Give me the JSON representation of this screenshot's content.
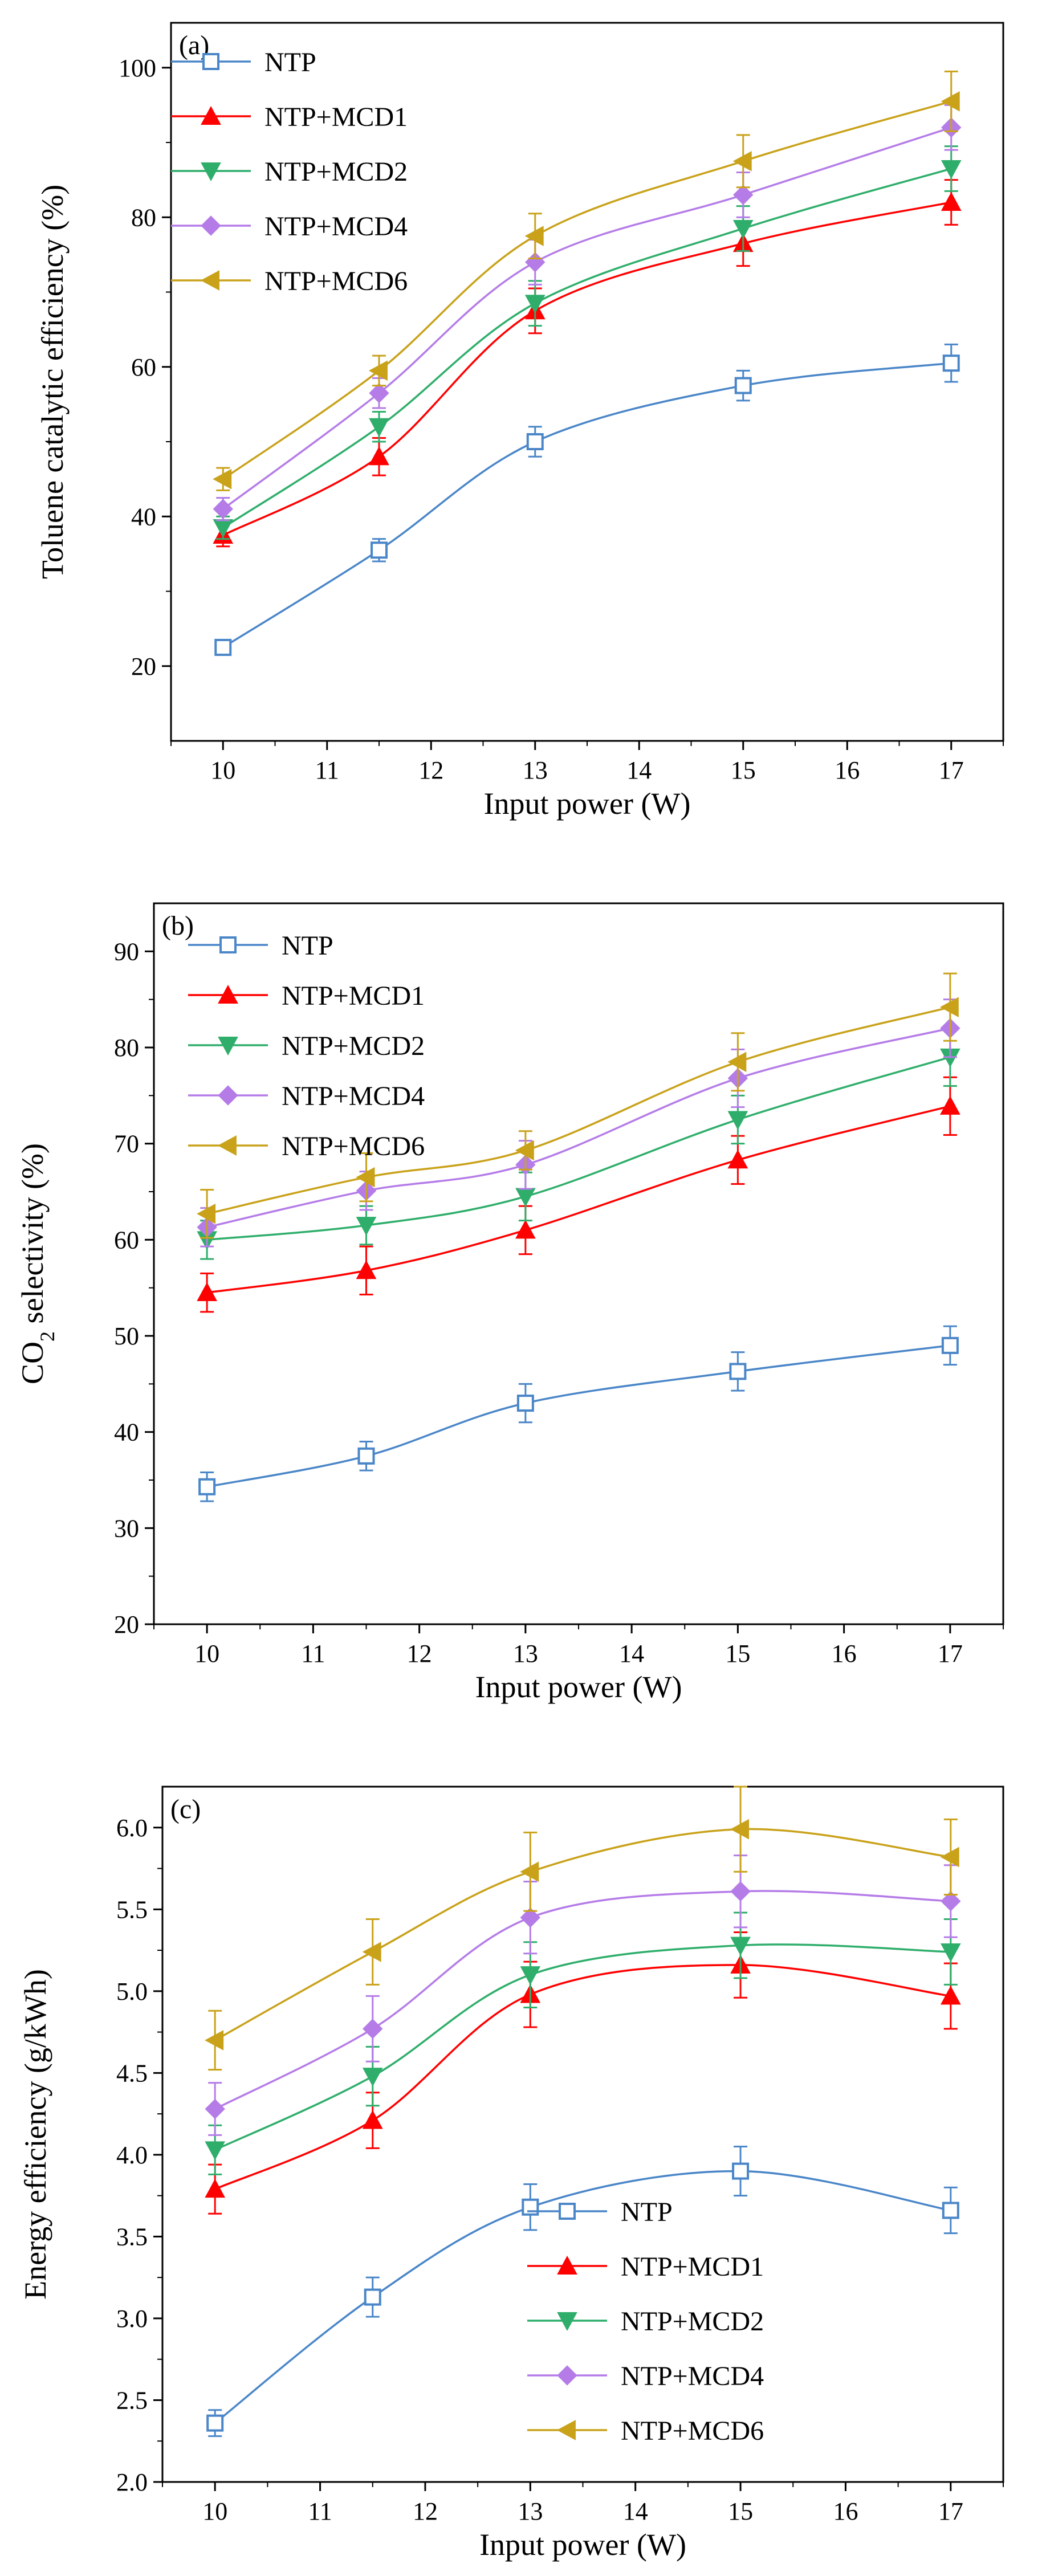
{
  "chart_data": [
    {
      "type": "line",
      "panel_label": "(a)",
      "xlabel": "Input power (W)",
      "ylabel": "Toluene catalytic efficiency (%)",
      "x": [
        10,
        11.5,
        13,
        15,
        17
      ],
      "xlim": [
        9.5,
        17.5
      ],
      "ylim": [
        10,
        106
      ],
      "xticks": [
        10,
        11,
        12,
        13,
        14,
        15,
        16,
        17
      ],
      "yticks": [
        20,
        40,
        60,
        80,
        100
      ],
      "legend_position": "top-left",
      "series": [
        {
          "name": "NTP",
          "values": [
            22.5,
            35.5,
            50,
            57.5,
            60.5
          ],
          "errors": [
            1.0,
            1.5,
            2.0,
            2.0,
            2.5
          ],
          "color": "#4a86c8",
          "marker": "square-open"
        },
        {
          "name": "NTP+MCD1",
          "values": [
            37.5,
            48,
            67.5,
            76.5,
            82
          ],
          "errors": [
            1.5,
            2.5,
            3.0,
            3.0,
            3.0
          ],
          "color": "#ff0000",
          "marker": "triangle-up"
        },
        {
          "name": "NTP+MCD2",
          "values": [
            38.5,
            52,
            68.5,
            78.5,
            86.5
          ],
          "errors": [
            1.5,
            2.0,
            3.0,
            3.0,
            3.0
          ],
          "color": "#2fae6b",
          "marker": "triangle-down"
        },
        {
          "name": "NTP+MCD4",
          "values": [
            41,
            56.5,
            74,
            83,
            92
          ],
          "errors": [
            1.5,
            2.0,
            3.0,
            3.0,
            3.0
          ],
          "color": "#b57ce8",
          "marker": "diamond"
        },
        {
          "name": "NTP+MCD6",
          "values": [
            45,
            59.5,
            77.5,
            87.5,
            95.5
          ],
          "errors": [
            1.5,
            2.0,
            3.0,
            3.5,
            4.0
          ],
          "color": "#c9a21a",
          "marker": "triangle-left"
        }
      ]
    },
    {
      "type": "line",
      "panel_label": "(b)",
      "xlabel": "Input power (W)",
      "ylabel": "CO2 selectivity (%)",
      "x": [
        10,
        11.5,
        13,
        15,
        17
      ],
      "xlim": [
        9.5,
        17.5
      ],
      "ylim": [
        20,
        95
      ],
      "xticks": [
        10,
        11,
        12,
        13,
        14,
        15,
        16,
        17
      ],
      "yticks": [
        20,
        30,
        40,
        50,
        60,
        70,
        80,
        90
      ],
      "legend_position": "top-left",
      "series": [
        {
          "name": "NTP",
          "values": [
            34.3,
            37.5,
            43,
            46.3,
            49
          ],
          "errors": [
            1.5,
            1.5,
            2.0,
            2.0,
            2.0
          ],
          "color": "#4a86c8",
          "marker": "square-open"
        },
        {
          "name": "NTP+MCD1",
          "values": [
            54.5,
            56.8,
            61,
            68.3,
            73.9
          ],
          "errors": [
            2.0,
            2.5,
            2.5,
            2.5,
            3.0
          ],
          "color": "#ff0000",
          "marker": "triangle-up"
        },
        {
          "name": "NTP+MCD2",
          "values": [
            60,
            61.5,
            64.5,
            72.5,
            79
          ],
          "errors": [
            2.0,
            2.0,
            2.5,
            2.5,
            3.0
          ],
          "color": "#2fae6b",
          "marker": "triangle-down"
        },
        {
          "name": "NTP+MCD4",
          "values": [
            61.3,
            65.1,
            67.8,
            76.8,
            82
          ],
          "errors": [
            2.0,
            2.0,
            2.5,
            3.0,
            3.0
          ],
          "color": "#b57ce8",
          "marker": "diamond"
        },
        {
          "name": "NTP+MCD6",
          "values": [
            62.7,
            66.5,
            69.3,
            78.5,
            84.2
          ],
          "errors": [
            2.5,
            2.5,
            2.0,
            3.0,
            3.5
          ],
          "color": "#c9a21a",
          "marker": "triangle-left"
        }
      ]
    },
    {
      "type": "line",
      "panel_label": "(c)",
      "xlabel": "Input power (W)",
      "ylabel": "Energy efficiency (g/kWh)",
      "x": [
        10,
        11.5,
        13,
        15,
        17
      ],
      "xlim": [
        9.5,
        17.5
      ],
      "ylim": [
        2.0,
        6.25
      ],
      "xticks": [
        10,
        11,
        12,
        13,
        14,
        15,
        16,
        17
      ],
      "yticks": [
        "2.0",
        "2.5",
        "3.0",
        "3.5",
        "4.0",
        "4.5",
        "5.0",
        "5.5",
        "6.0"
      ],
      "legend_position": "bottom-right",
      "series": [
        {
          "name": "NTP",
          "values": [
            2.36,
            3.13,
            3.68,
            3.9,
            3.66
          ],
          "errors": [
            0.08,
            0.12,
            0.14,
            0.15,
            0.14
          ],
          "color": "#4a86c8",
          "marker": "square-open"
        },
        {
          "name": "NTP+MCD1",
          "values": [
            3.79,
            4.21,
            4.98,
            5.16,
            4.97
          ],
          "errors": [
            0.15,
            0.17,
            0.2,
            0.2,
            0.2
          ],
          "color": "#ff0000",
          "marker": "triangle-up"
        },
        {
          "name": "NTP+MCD2",
          "values": [
            4.03,
            4.48,
            5.1,
            5.28,
            5.24
          ],
          "errors": [
            0.15,
            0.18,
            0.2,
            0.2,
            0.2
          ],
          "color": "#2fae6b",
          "marker": "triangle-down"
        },
        {
          "name": "NTP+MCD4",
          "values": [
            4.28,
            4.77,
            5.45,
            5.61,
            5.55
          ],
          "errors": [
            0.16,
            0.2,
            0.22,
            0.22,
            0.22
          ],
          "color": "#b57ce8",
          "marker": "diamond"
        },
        {
          "name": "NTP+MCD6",
          "values": [
            4.7,
            5.24,
            5.73,
            5.99,
            5.82
          ],
          "errors": [
            0.18,
            0.2,
            0.24,
            0.26,
            0.23
          ],
          "color": "#c9a21a",
          "marker": "triangle-left"
        }
      ]
    }
  ]
}
